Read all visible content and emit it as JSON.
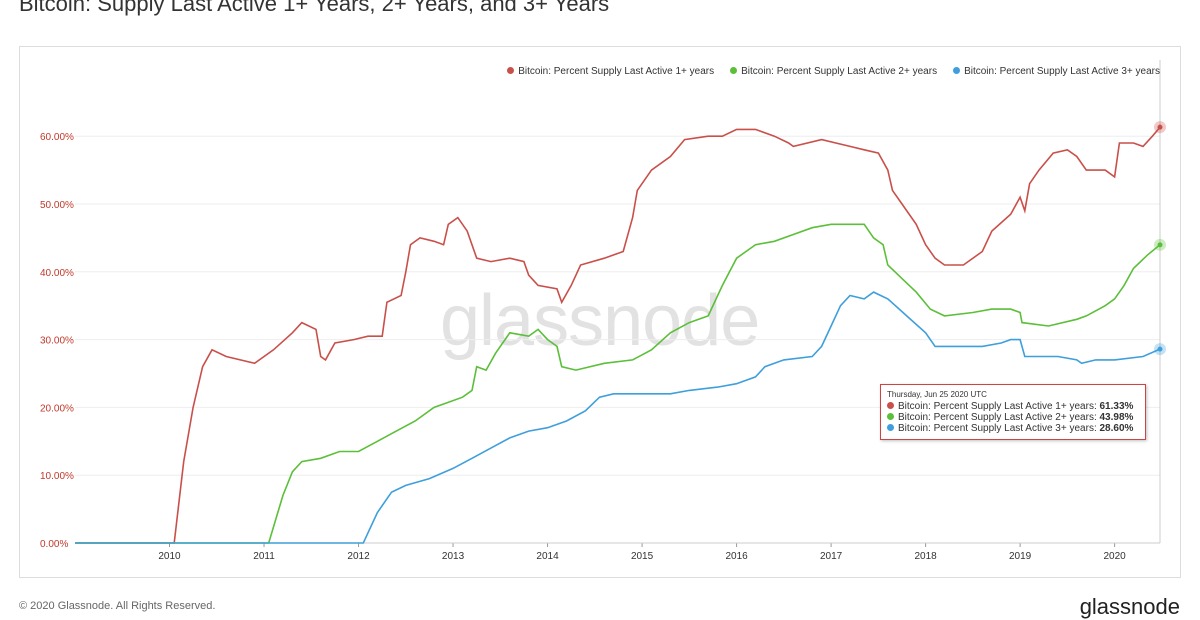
{
  "title": "Bitcoin: Supply Last Active 1+ Years,  2+ Years, and 3+ Years",
  "watermark": "glassnode",
  "footer": "© 2020 Glassnode. All Rights Reserved.",
  "brand": "glassnode",
  "tooltip": {
    "date": "Thursday, Jun 25 2020 UTC",
    "rows": [
      {
        "label": "Bitcoin: Percent Supply Last Active 1+ years:",
        "value": "61.33%"
      },
      {
        "label": "Bitcoin: Percent Supply Last Active 2+ years:",
        "value": "43.98%"
      },
      {
        "label": "Bitcoin: Percent Supply Last Active 3+ years:",
        "value": "28.60%"
      }
    ]
  },
  "chart_data": {
    "type": "line",
    "xlim": [
      2009.0,
      2020.48
    ],
    "ylim": [
      0,
      65
    ],
    "x_ticks": [
      "2010",
      "2011",
      "2012",
      "2013",
      "2014",
      "2015",
      "2016",
      "2017",
      "2018",
      "2019",
      "2020"
    ],
    "y_ticks": [
      "0.00%",
      "10.00%",
      "20.00%",
      "30.00%",
      "40.00%",
      "50.00%",
      "60.00%"
    ],
    "y_tick_values": [
      0,
      10,
      20,
      30,
      40,
      50,
      60
    ],
    "legend_position": "top-right",
    "grid": true,
    "series": [
      {
        "name": "Bitcoin: Percent Supply Last Active 1+ years",
        "color": "#c9504a",
        "points": [
          [
            2009.0,
            0
          ],
          [
            2010.05,
            0
          ],
          [
            2010.15,
            12
          ],
          [
            2010.25,
            20
          ],
          [
            2010.35,
            26
          ],
          [
            2010.45,
            28.5
          ],
          [
            2010.6,
            27.5
          ],
          [
            2010.9,
            26.5
          ],
          [
            2011.1,
            28.5
          ],
          [
            2011.3,
            31
          ],
          [
            2011.4,
            32.5
          ],
          [
            2011.55,
            31.5
          ],
          [
            2011.6,
            27.5
          ],
          [
            2011.65,
            27
          ],
          [
            2011.75,
            29.5
          ],
          [
            2011.95,
            30
          ],
          [
            2012.1,
            30.5
          ],
          [
            2012.25,
            30.5
          ],
          [
            2012.3,
            35.5
          ],
          [
            2012.45,
            36.5
          ],
          [
            2012.5,
            40
          ],
          [
            2012.55,
            44
          ],
          [
            2012.65,
            45
          ],
          [
            2012.8,
            44.5
          ],
          [
            2012.9,
            44
          ],
          [
            2012.95,
            47
          ],
          [
            2013.05,
            48
          ],
          [
            2013.15,
            46
          ],
          [
            2013.25,
            42
          ],
          [
            2013.4,
            41.5
          ],
          [
            2013.6,
            42
          ],
          [
            2013.75,
            41.5
          ],
          [
            2013.8,
            39.5
          ],
          [
            2013.9,
            38
          ],
          [
            2014.1,
            37.5
          ],
          [
            2014.15,
            35.5
          ],
          [
            2014.25,
            38
          ],
          [
            2014.35,
            41
          ],
          [
            2014.6,
            42
          ],
          [
            2014.8,
            43
          ],
          [
            2014.9,
            48
          ],
          [
            2014.95,
            52
          ],
          [
            2015.1,
            55
          ],
          [
            2015.3,
            57
          ],
          [
            2015.45,
            59.5
          ],
          [
            2015.7,
            60
          ],
          [
            2015.85,
            60
          ],
          [
            2016.0,
            61
          ],
          [
            2016.2,
            61
          ],
          [
            2016.4,
            60
          ],
          [
            2016.55,
            59
          ],
          [
            2016.6,
            58.5
          ],
          [
            2016.9,
            59.5
          ],
          [
            2017.2,
            58.5
          ],
          [
            2017.35,
            58
          ],
          [
            2017.5,
            57.5
          ],
          [
            2017.6,
            55
          ],
          [
            2017.65,
            52
          ],
          [
            2017.75,
            50
          ],
          [
            2017.9,
            47
          ],
          [
            2018.0,
            44
          ],
          [
            2018.1,
            42
          ],
          [
            2018.2,
            41
          ],
          [
            2018.4,
            41
          ],
          [
            2018.6,
            43
          ],
          [
            2018.7,
            46
          ],
          [
            2018.9,
            48.5
          ],
          [
            2019.0,
            51
          ],
          [
            2019.05,
            49
          ],
          [
            2019.1,
            53
          ],
          [
            2019.2,
            55
          ],
          [
            2019.35,
            57.5
          ],
          [
            2019.5,
            58
          ],
          [
            2019.6,
            57
          ],
          [
            2019.7,
            55
          ],
          [
            2019.9,
            55
          ],
          [
            2020.0,
            54
          ],
          [
            2020.05,
            59
          ],
          [
            2020.2,
            59
          ],
          [
            2020.3,
            58.5
          ],
          [
            2020.4,
            60
          ],
          [
            2020.48,
            61.33
          ]
        ]
      },
      {
        "name": "Bitcoin: Percent Supply Last Active 2+ years",
        "color": "#5cbf3a",
        "points": [
          [
            2009.0,
            0
          ],
          [
            2011.05,
            0
          ],
          [
            2011.2,
            7
          ],
          [
            2011.3,
            10.5
          ],
          [
            2011.4,
            12
          ],
          [
            2011.6,
            12.5
          ],
          [
            2011.8,
            13.5
          ],
          [
            2012.0,
            13.5
          ],
          [
            2012.2,
            15
          ],
          [
            2012.4,
            16.5
          ],
          [
            2012.6,
            18
          ],
          [
            2012.8,
            20
          ],
          [
            2012.9,
            20.5
          ],
          [
            2013.1,
            21.5
          ],
          [
            2013.2,
            22.5
          ],
          [
            2013.25,
            26
          ],
          [
            2013.35,
            25.5
          ],
          [
            2013.45,
            28
          ],
          [
            2013.6,
            31
          ],
          [
            2013.8,
            30.5
          ],
          [
            2013.9,
            31.5
          ],
          [
            2014.0,
            30
          ],
          [
            2014.1,
            29
          ],
          [
            2014.15,
            26
          ],
          [
            2014.3,
            25.5
          ],
          [
            2014.6,
            26.5
          ],
          [
            2014.9,
            27
          ],
          [
            2015.1,
            28.5
          ],
          [
            2015.3,
            31
          ],
          [
            2015.5,
            32.5
          ],
          [
            2015.7,
            33.5
          ],
          [
            2015.85,
            38
          ],
          [
            2016.0,
            42
          ],
          [
            2016.2,
            44
          ],
          [
            2016.4,
            44.5
          ],
          [
            2016.6,
            45.5
          ],
          [
            2016.8,
            46.5
          ],
          [
            2017.0,
            47
          ],
          [
            2017.2,
            47
          ],
          [
            2017.35,
            47
          ],
          [
            2017.45,
            45
          ],
          [
            2017.55,
            44
          ],
          [
            2017.6,
            41
          ],
          [
            2017.75,
            39
          ],
          [
            2017.9,
            37
          ],
          [
            2018.05,
            34.5
          ],
          [
            2018.2,
            33.5
          ],
          [
            2018.5,
            34
          ],
          [
            2018.7,
            34.5
          ],
          [
            2018.9,
            34.5
          ],
          [
            2019.0,
            34
          ],
          [
            2019.02,
            32.5
          ],
          [
            2019.3,
            32
          ],
          [
            2019.6,
            33
          ],
          [
            2019.7,
            33.5
          ],
          [
            2019.9,
            35
          ],
          [
            2020.0,
            36
          ],
          [
            2020.1,
            38
          ],
          [
            2020.2,
            40.5
          ],
          [
            2020.35,
            42.5
          ],
          [
            2020.48,
            43.98
          ]
        ]
      },
      {
        "name": "Bitcoin: Percent Supply Last Active 3+ years",
        "color": "#3e9fdc",
        "points": [
          [
            2009.0,
            0
          ],
          [
            2012.05,
            0
          ],
          [
            2012.2,
            4.5
          ],
          [
            2012.35,
            7.5
          ],
          [
            2012.5,
            8.5
          ],
          [
            2012.75,
            9.5
          ],
          [
            2013.0,
            11
          ],
          [
            2013.2,
            12.5
          ],
          [
            2013.4,
            14
          ],
          [
            2013.6,
            15.5
          ],
          [
            2013.8,
            16.5
          ],
          [
            2014.0,
            17
          ],
          [
            2014.2,
            18
          ],
          [
            2014.4,
            19.5
          ],
          [
            2014.55,
            21.5
          ],
          [
            2014.7,
            22
          ],
          [
            2015.0,
            22
          ],
          [
            2015.3,
            22
          ],
          [
            2015.5,
            22.5
          ],
          [
            2015.8,
            23
          ],
          [
            2016.0,
            23.5
          ],
          [
            2016.2,
            24.5
          ],
          [
            2016.3,
            26
          ],
          [
            2016.5,
            27
          ],
          [
            2016.8,
            27.5
          ],
          [
            2016.9,
            29
          ],
          [
            2017.0,
            32
          ],
          [
            2017.1,
            35
          ],
          [
            2017.2,
            36.5
          ],
          [
            2017.35,
            36
          ],
          [
            2017.45,
            37
          ],
          [
            2017.6,
            36
          ],
          [
            2017.8,
            33.5
          ],
          [
            2018.0,
            31
          ],
          [
            2018.1,
            29
          ],
          [
            2018.4,
            29
          ],
          [
            2018.6,
            29
          ],
          [
            2018.8,
            29.5
          ],
          [
            2018.9,
            30
          ],
          [
            2019.0,
            30
          ],
          [
            2019.05,
            27.5
          ],
          [
            2019.4,
            27.5
          ],
          [
            2019.6,
            27
          ],
          [
            2019.65,
            26.5
          ],
          [
            2019.8,
            27
          ],
          [
            2020.0,
            27
          ],
          [
            2020.3,
            27.5
          ],
          [
            2020.48,
            28.6
          ]
        ]
      }
    ]
  }
}
